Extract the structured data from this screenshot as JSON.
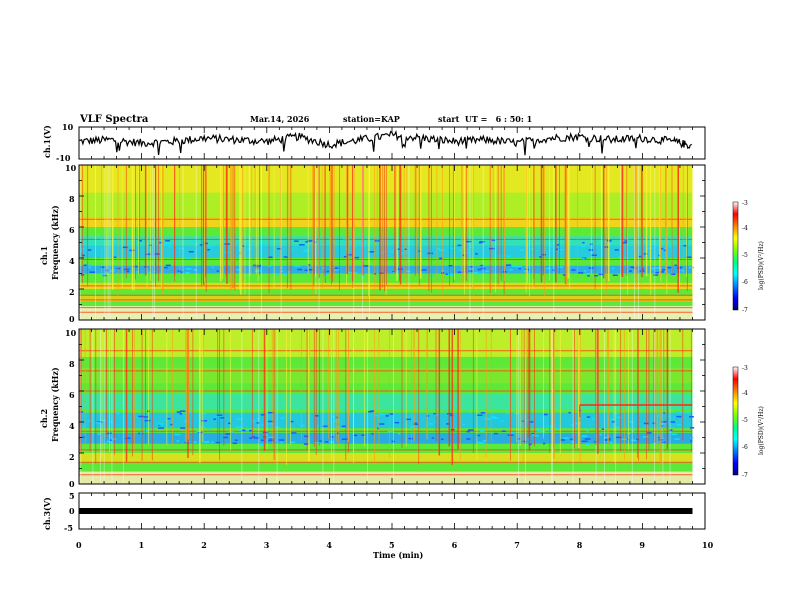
{
  "header": {
    "title": "VLF Spectra",
    "date": "Mar.14, 2026",
    "station": "station=KAP",
    "start": "start  UT =   6 : 50: 1"
  },
  "chart_data": [
    {
      "type": "line",
      "name": "ch.1 waveform",
      "ylabel": "ch.1(V)",
      "ylim": [
        -10,
        10
      ],
      "yticklabels": [
        "10",
        "-10"
      ],
      "x": [
        0,
        0.5,
        1,
        1.5,
        2,
        2.5,
        3,
        3.5,
        4,
        4.5,
        5,
        5.5,
        6,
        6.5,
        7,
        7.5,
        8,
        8.5,
        9,
        9.5,
        9.8
      ],
      "y": [
        1,
        2,
        0,
        1,
        3,
        2,
        1,
        4,
        -1,
        2,
        5,
        3,
        1,
        2,
        0,
        3,
        4,
        2,
        3,
        1,
        -2
      ]
    },
    {
      "type": "heatmap",
      "name": "ch.1 spectrogram",
      "ylabel": "ch.1\nFrequency (kHz)",
      "ylim": [
        0,
        10
      ],
      "yticklabels": [
        "0",
        "2",
        "4",
        "6",
        "8",
        "10"
      ],
      "colorbar": {
        "label": "log(PSD)(V²/Hz)",
        "range": [
          -7,
          -3
        ],
        "ticklabels": [
          "-3",
          "-4",
          "-5",
          "-6",
          "-7"
        ],
        "colors": [
          "#000080",
          "#0000ff",
          "#0080ff",
          "#00ffff",
          "#00ff80",
          "#80ff00",
          "#ffff00",
          "#ff8000",
          "#ff0000",
          "#ffffff"
        ]
      }
    },
    {
      "type": "heatmap",
      "name": "ch.2 spectrogram",
      "ylabel": "ch.2\nFrequency (kHz)",
      "ylim": [
        0,
        10
      ],
      "yticklabels": [
        "0",
        "2",
        "4",
        "6",
        "8",
        "10"
      ],
      "colorbar": {
        "label": "log(PSD)(V²/Hz)",
        "range": [
          -7,
          -3
        ],
        "ticklabels": [
          "-3",
          "-4",
          "-5",
          "-6",
          "-7"
        ],
        "colors": [
          "#000080",
          "#0000ff",
          "#0080ff",
          "#00ffff",
          "#00ff80",
          "#80ff00",
          "#ffff00",
          "#ff8000",
          "#ff0000",
          "#ffffff"
        ]
      }
    },
    {
      "type": "line",
      "name": "ch.3 waveform",
      "ylabel": "ch.3(V)",
      "ylim": [
        -5,
        5
      ],
      "yticklabels": [
        "5",
        "0",
        "-5"
      ],
      "x": [
        0,
        9.8
      ],
      "y": [
        0,
        0
      ]
    }
  ],
  "xaxis": {
    "label": "Time (min)",
    "range": [
      0,
      10
    ],
    "ticklabels": [
      "0",
      "1",
      "2",
      "3",
      "4",
      "5",
      "6",
      "7",
      "8",
      "9",
      "10"
    ]
  }
}
